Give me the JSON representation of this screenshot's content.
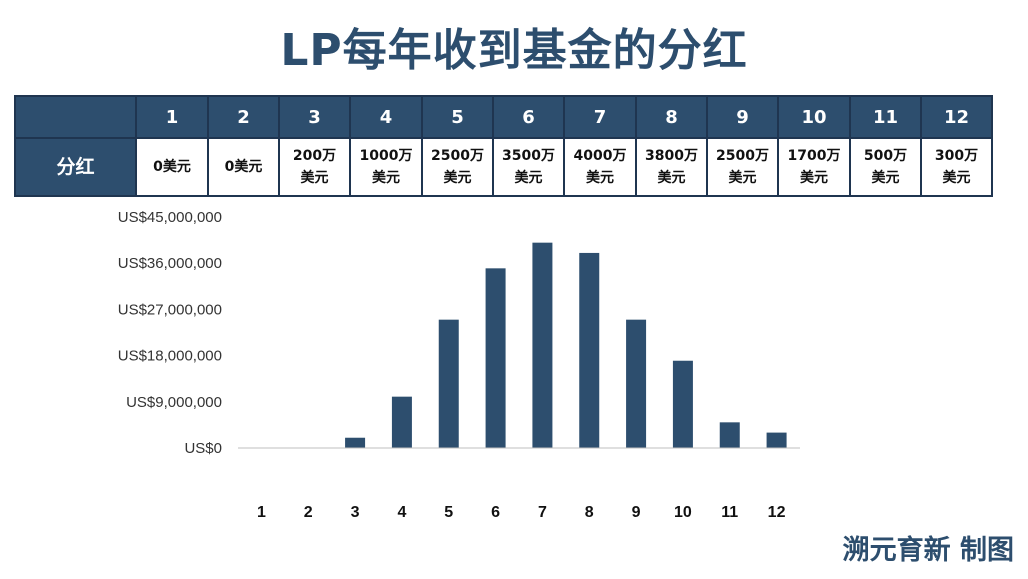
{
  "title": "LP每年收到基金的分红",
  "table": {
    "row_label": "分红",
    "years": [
      "1",
      "2",
      "3",
      "4",
      "5",
      "6",
      "7",
      "8",
      "9",
      "10",
      "11",
      "12"
    ],
    "amounts": [
      {
        "amt": "0美元",
        "unit": ""
      },
      {
        "amt": "0美元",
        "unit": ""
      },
      {
        "amt": "200万",
        "unit": "美元"
      },
      {
        "amt": "1000万",
        "unit": "美元"
      },
      {
        "amt": "2500万",
        "unit": "美元"
      },
      {
        "amt": "3500万",
        "unit": "美元"
      },
      {
        "amt": "4000万",
        "unit": "美元"
      },
      {
        "amt": "3800万",
        "unit": "美元"
      },
      {
        "amt": "2500万",
        "unit": "美元"
      },
      {
        "amt": "1700万",
        "unit": "美元"
      },
      {
        "amt": "500万",
        "unit": "美元"
      },
      {
        "amt": "300万",
        "unit": "美元"
      }
    ]
  },
  "chart_data": {
    "type": "bar",
    "categories": [
      "1",
      "2",
      "3",
      "4",
      "5",
      "6",
      "7",
      "8",
      "9",
      "10",
      "11",
      "12"
    ],
    "values": [
      0,
      0,
      2000000,
      10000000,
      25000000,
      35000000,
      40000000,
      38000000,
      25000000,
      17000000,
      5000000,
      3000000
    ],
    "ylim": [
      0,
      45000000
    ],
    "yticks": [
      0,
      9000000,
      18000000,
      27000000,
      36000000,
      45000000
    ],
    "ytick_labels": [
      "US$0",
      "US$9,000,000",
      "US$18,000,000",
      "US$27,000,000",
      "US$36,000,000",
      "US$45,000,000"
    ],
    "grid": false,
    "bar_color": "#2d4e6e",
    "title": "",
    "xlabel": "",
    "ylabel": ""
  },
  "credit": "溯元育新 制图"
}
